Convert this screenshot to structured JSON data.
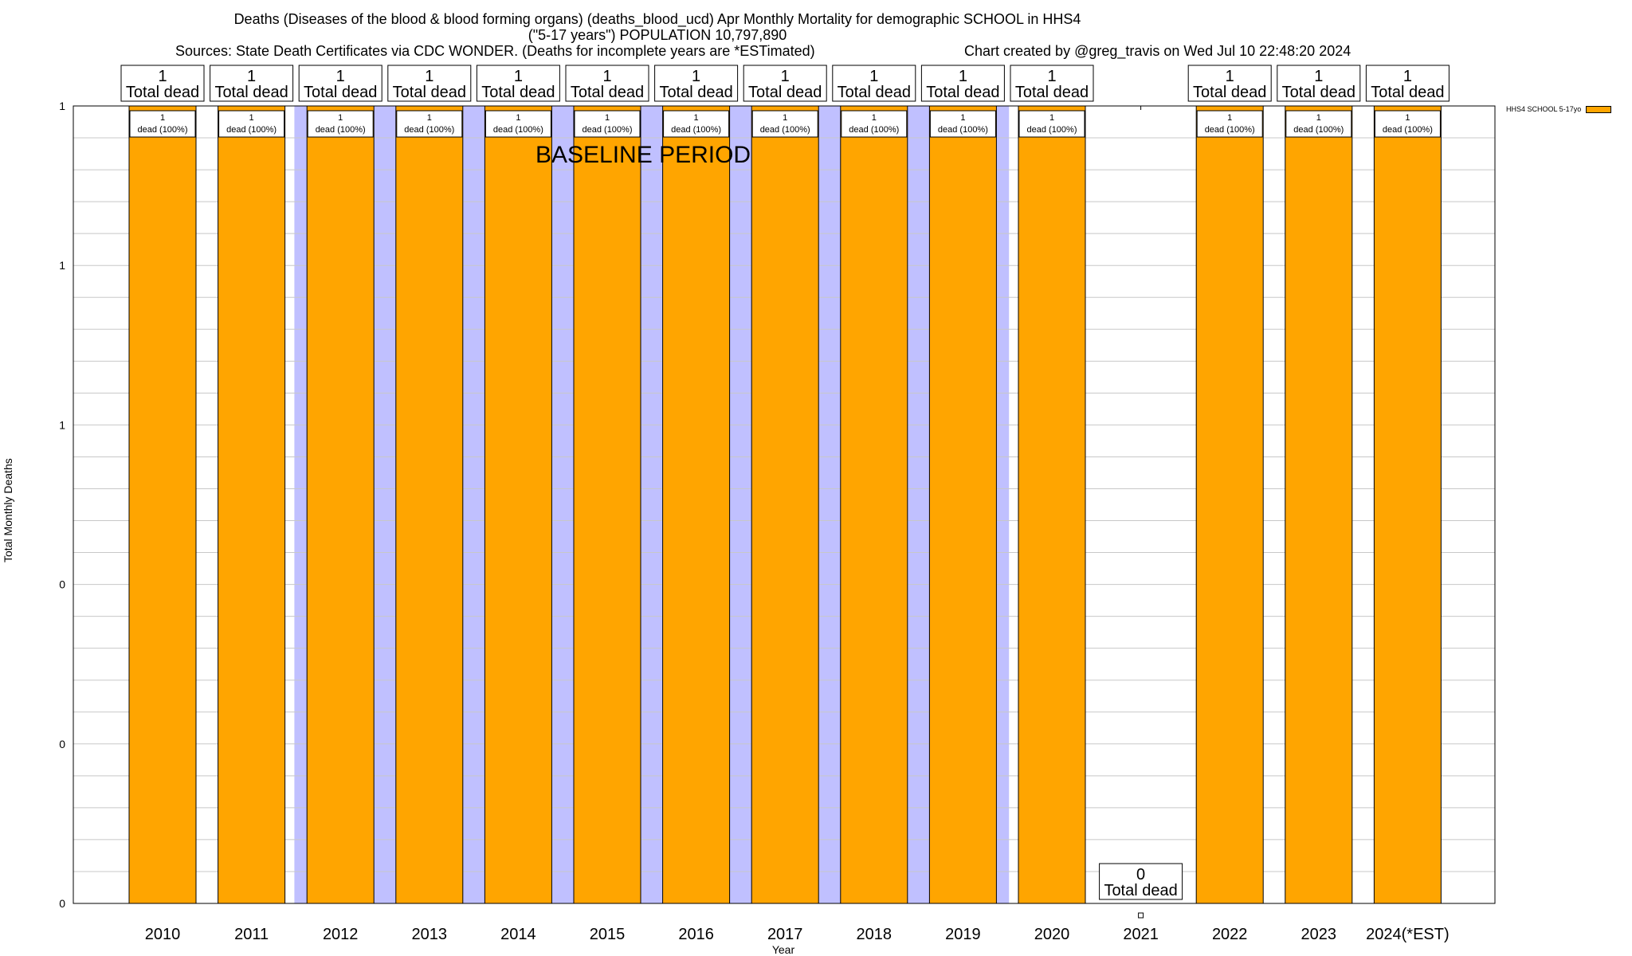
{
  "header": {
    "title_line1": "Deaths (Diseases of the blood & blood forming organs) (deaths_blood_ucd) Apr Monthly Mortality for demographic SCHOOL in HHS4",
    "title_line2": "(\"5-17 years\") POPULATION 10,797,890",
    "sources": "Sources: State Death Certificates via CDC WONDER. (Deaths for incomplete years are *ESTimated)",
    "credit": "Chart created by @greg_travis on Wed Jul 10 22:48:20 2024"
  },
  "colors": {
    "bar": "#FFA500",
    "baseline_band": "#C0C0FF",
    "grid": "#C8C8C8"
  },
  "chart_data": {
    "type": "bar",
    "categories": [
      "2010",
      "2011",
      "2012",
      "2013",
      "2014",
      "2015",
      "2016",
      "2017",
      "2018",
      "2019",
      "2020",
      "2021",
      "2022",
      "2023",
      "2024(*EST)"
    ],
    "series": [
      {
        "name": "HHS4 SCHOOL 5-17yo",
        "values": [
          1,
          1,
          1,
          1,
          1,
          1,
          1,
          1,
          1,
          1,
          1,
          0,
          1,
          1,
          1
        ]
      }
    ],
    "top_labels": [
      {
        "value": "1",
        "text": "Total dead"
      },
      {
        "value": "1",
        "text": "Total dead"
      },
      {
        "value": "1",
        "text": "Total dead"
      },
      {
        "value": "1",
        "text": "Total dead"
      },
      {
        "value": "1",
        "text": "Total dead"
      },
      {
        "value": "1",
        "text": "Total dead"
      },
      {
        "value": "1",
        "text": "Total dead"
      },
      {
        "value": "1",
        "text": "Total dead"
      },
      {
        "value": "1",
        "text": "Total dead"
      },
      {
        "value": "1",
        "text": "Total dead"
      },
      {
        "value": "1",
        "text": "Total dead"
      },
      {
        "value": "0",
        "text": "Total dead"
      },
      {
        "value": "1",
        "text": "Total dead"
      },
      {
        "value": "1",
        "text": "Total dead"
      },
      {
        "value": "1",
        "text": "Total dead"
      }
    ],
    "inner_labels": [
      {
        "value": "1",
        "text": "dead (100%)"
      },
      {
        "value": "1",
        "text": "dead (100%)"
      },
      {
        "value": "1",
        "text": "dead (100%)"
      },
      {
        "value": "1",
        "text": "dead (100%)"
      },
      {
        "value": "1",
        "text": "dead (100%)"
      },
      {
        "value": "1",
        "text": "dead (100%)"
      },
      {
        "value": "1",
        "text": "dead (100%)"
      },
      {
        "value": "1",
        "text": "dead (100%)"
      },
      {
        "value": "1",
        "text": "dead (100%)"
      },
      {
        "value": "1",
        "text": "dead (100%)"
      },
      {
        "value": "1",
        "text": "dead (100%)"
      },
      null,
      {
        "value": "1",
        "text": "dead (100%)"
      },
      {
        "value": "1",
        "text": "dead (100%)"
      },
      {
        "value": "1",
        "text": "dead (100%)"
      }
    ],
    "ylim": [
      0,
      1
    ],
    "yticks": [
      0,
      0.2,
      0.4,
      0.6,
      0.8,
      1
    ],
    "ytick_labels": [
      "0",
      "0",
      "0",
      "1",
      "1",
      "1"
    ],
    "baseline_band": {
      "from": "2012",
      "to": "2019",
      "label": "BASELINE PERIOD"
    },
    "xlabel": "Year",
    "ylabel": "Total Monthly Deaths",
    "legend": {
      "label": "HHS4 SCHOOL 5-17yo",
      "position": "top-right"
    },
    "grid": true
  }
}
